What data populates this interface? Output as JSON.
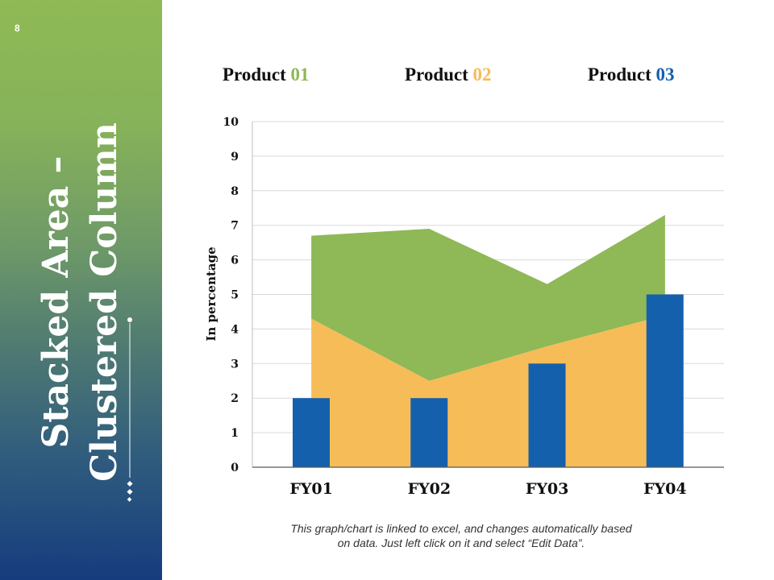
{
  "slide": {
    "number": "8",
    "title_line1": "Stacked Area –",
    "title_line2": "Clustered Column",
    "footnote_line1": "This graph/chart is linked to excel, and changes automatically based",
    "footnote_line2": "on data. Just left click on it and select “Edit Data”."
  },
  "colors": {
    "sidebar_top": "#8fba55",
    "sidebar_bottom": "#163c7d",
    "product1": "#8fb857",
    "product2": "#f6bc58",
    "product3": "#1560ad"
  },
  "legend": [
    {
      "prefix": "Product ",
      "num": "01",
      "color": "#8fb857"
    },
    {
      "prefix": "Product ",
      "num": "02",
      "color": "#f6bc58"
    },
    {
      "prefix": "Product ",
      "num": "03",
      "color": "#1560ad"
    }
  ],
  "chart_data": {
    "type": "bar",
    "title": "",
    "xlabel": "",
    "ylabel": "In percentage",
    "ylim": [
      0,
      10
    ],
    "yticks": [
      "0",
      "1",
      "2",
      "3",
      "4",
      "5",
      "6",
      "7",
      "8",
      "9",
      "10"
    ],
    "categories": [
      "FY01",
      "FY02",
      "FY03",
      "FY04"
    ],
    "grid": true,
    "legend_position": "top",
    "series": [
      {
        "name": "Product 01",
        "kind": "stacked-area",
        "color": "#8fb857",
        "values": [
          2.4,
          4.4,
          1.8,
          2.9
        ]
      },
      {
        "name": "Product 02",
        "kind": "stacked-area",
        "color": "#f6bc58",
        "values": [
          4.3,
          2.5,
          3.5,
          4.4
        ]
      },
      {
        "name": "Product 03",
        "kind": "column",
        "color": "#1560ad",
        "values": [
          2,
          2,
          3,
          5
        ]
      }
    ]
  }
}
